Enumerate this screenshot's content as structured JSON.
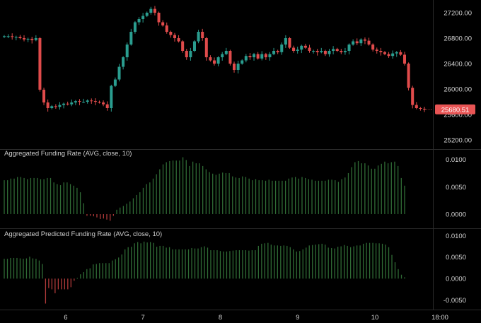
{
  "colors": {
    "background": "#000000",
    "up": "#2a9d8f",
    "down": "#e04b4b",
    "funding_pos": "#2f6b35",
    "funding_neg": "#b03a3a",
    "separator": "#2a2a2a",
    "badge": "#e85454"
  },
  "x_axis": {
    "ticks": [
      {
        "label": "6",
        "day": 5.5
      },
      {
        "label": "7",
        "day": 6.5
      },
      {
        "label": "8",
        "day": 7.5
      },
      {
        "label": "9",
        "day": 8.5
      },
      {
        "label": "10",
        "day": 9.5
      },
      {
        "label": "18:00",
        "day": 10.25
      }
    ],
    "range_days": [
      4.65,
      10.25
    ]
  },
  "chart_data": [
    {
      "type": "candlestick",
      "title": "",
      "ylim": [
        25100,
        27400
      ],
      "y_ticks": [
        25200,
        25600,
        26000,
        26400,
        26800,
        27200
      ],
      "y_tick_labels": [
        "25200.00",
        "25600.00",
        "26000.00",
        "26400.00",
        "26800.00",
        "27200.00"
      ],
      "last_price": 25680.51,
      "last_price_label": "25680.51",
      "close_series": [
        26830,
        26830,
        26820,
        26820,
        26800,
        26780,
        26790,
        26770,
        26800,
        25990,
        25790,
        25700,
        25730,
        25720,
        25750,
        25770,
        25760,
        25790,
        25810,
        25800,
        25800,
        25820,
        25810,
        25800,
        25790,
        25760,
        25700,
        26050,
        26150,
        26350,
        26500,
        26700,
        26900,
        27050,
        27100,
        27150,
        27200,
        27260,
        27200,
        27050,
        27000,
        26900,
        26850,
        26800,
        26750,
        26600,
        26500,
        26600,
        26750,
        26900,
        26800,
        26500,
        26450,
        26400,
        26500,
        26550,
        26600,
        26400,
        26300,
        26400,
        26450,
        26520,
        26500,
        26550,
        26480,
        26550,
        26500,
        26550,
        26600,
        26580,
        26700,
        26800,
        26650,
        26600,
        26620,
        26680,
        26650,
        26600,
        26600,
        26580,
        26600,
        26550,
        26600,
        26630,
        26600,
        26580,
        26600,
        26700,
        26750,
        26720,
        26780,
        26760,
        26700,
        26620,
        26600,
        26580,
        26550,
        26520,
        26560,
        26580,
        26540,
        26400,
        26020,
        25750,
        25700,
        25690,
        25680.51
      ]
    },
    {
      "type": "bar",
      "title": "Aggregated Funding Rate (AVG, close, 10)",
      "ylim": [
        -0.0022,
        0.0115
      ],
      "y_ticks": [
        0.0,
        0.005,
        0.01
      ],
      "y_tick_labels": [
        "0.0000",
        "0.0050",
        "0.0100"
      ],
      "values": [
        0.0062,
        0.0062,
        0.0065,
        0.0065,
        0.0068,
        0.0068,
        0.0066,
        0.0064,
        0.0066,
        0.0066,
        0.0066,
        0.0064,
        0.0064,
        0.0066,
        0.0066,
        0.0058,
        0.0055,
        0.0053,
        0.0058,
        0.0058,
        0.0055,
        0.0052,
        0.0048,
        0.004,
        0.002,
        -0.0003,
        -0.0003,
        -0.0004,
        -0.0006,
        -0.0009,
        -0.0008,
        -0.001,
        -0.0012,
        -0.0003,
        0.0008,
        0.0012,
        0.0015,
        0.0019,
        0.0023,
        0.0029,
        0.0035,
        0.004,
        0.0048,
        0.0055,
        0.0058,
        0.0065,
        0.0073,
        0.0082,
        0.0091,
        0.0095,
        0.0097,
        0.0098,
        0.0098,
        0.0098,
        0.0104,
        0.0099,
        0.0088,
        0.0096,
        0.0093,
        0.0093,
        0.0088,
        0.0082,
        0.0077,
        0.0074,
        0.0072,
        0.0074,
        0.0076,
        0.0075,
        0.0075,
        0.0069,
        0.0067,
        0.0066,
        0.0069,
        0.0068,
        0.0065,
        0.0062,
        0.0064,
        0.0062,
        0.0062,
        0.0061,
        0.0063,
        0.0061,
        0.0061,
        0.0061,
        0.0061,
        0.0061,
        0.0065,
        0.0067,
        0.0068,
        0.0065,
        0.0068,
        0.0066,
        0.0064,
        0.0063,
        0.0061,
        0.0061,
        0.0061,
        0.0061,
        0.0063,
        0.0063,
        0.0062,
        0.0059,
        0.0064,
        0.0067,
        0.0075,
        0.0086,
        0.0095,
        0.0097,
        0.0093,
        0.0093,
        0.0089,
        0.0083,
        0.0083,
        0.0089,
        0.0092,
        0.0096,
        0.0093,
        0.0095,
        0.0096,
        0.0088,
        0.0066,
        0.0052
      ]
    },
    {
      "type": "bar",
      "title": "Aggregated Predicted Funding Rate (AVG, close, 10)",
      "ylim": [
        -0.0072,
        0.0112
      ],
      "y_ticks": [
        -0.005,
        0.0,
        0.005,
        0.01
      ],
      "y_tick_labels": [
        "-0.0050",
        "0.0000",
        "0.0050",
        "0.0100"
      ],
      "values": [
        0.0046,
        0.0046,
        0.0048,
        0.0048,
        0.0048,
        0.0047,
        0.0046,
        0.0047,
        0.0051,
        0.0047,
        0.0046,
        0.0042,
        0.0034,
        -0.0058,
        -0.0022,
        -0.0025,
        -0.0034,
        -0.0025,
        -0.0025,
        -0.0025,
        -0.0025,
        -0.002,
        -0.0005,
        0.0002,
        0.001,
        0.0015,
        0.0022,
        0.0024,
        0.0033,
        0.0034,
        0.0036,
        0.0036,
        0.0036,
        0.0036,
        0.0042,
        0.0045,
        0.0049,
        0.0056,
        0.0068,
        0.0073,
        0.0074,
        0.0082,
        0.0085,
        0.0082,
        0.0086,
        0.0084,
        0.0085,
        0.0083,
        0.0074,
        0.0076,
        0.0076,
        0.0072,
        0.0073,
        0.0068,
        0.0068,
        0.0068,
        0.0068,
        0.0068,
        0.0068,
        0.0071,
        0.007,
        0.007,
        0.0073,
        0.0075,
        0.0072,
        0.0066,
        0.0066,
        0.0066,
        0.0064,
        0.0063,
        0.0063,
        0.0064,
        0.0065,
        0.0066,
        0.0066,
        0.0066,
        0.0066,
        0.0065,
        0.0066,
        0.0066,
        0.0076,
        0.0081,
        0.0082,
        0.0083,
        0.0079,
        0.0077,
        0.0077,
        0.0076,
        0.0077,
        0.0076,
        0.0073,
        0.0068,
        0.0063,
        0.0064,
        0.0068,
        0.0072,
        0.0077,
        0.0078,
        0.0079,
        0.008,
        0.0081,
        0.0079,
        0.0072,
        0.0071,
        0.007,
        0.0074,
        0.0075,
        0.0078,
        0.0076,
        0.0073,
        0.0075,
        0.0077,
        0.0077,
        0.0081,
        0.0083,
        0.0083,
        0.0083,
        0.0082,
        0.0082,
        0.0081,
        0.0079,
        0.0073,
        0.0055,
        0.0038,
        0.0022,
        0.0009,
        0.0003
      ]
    }
  ]
}
